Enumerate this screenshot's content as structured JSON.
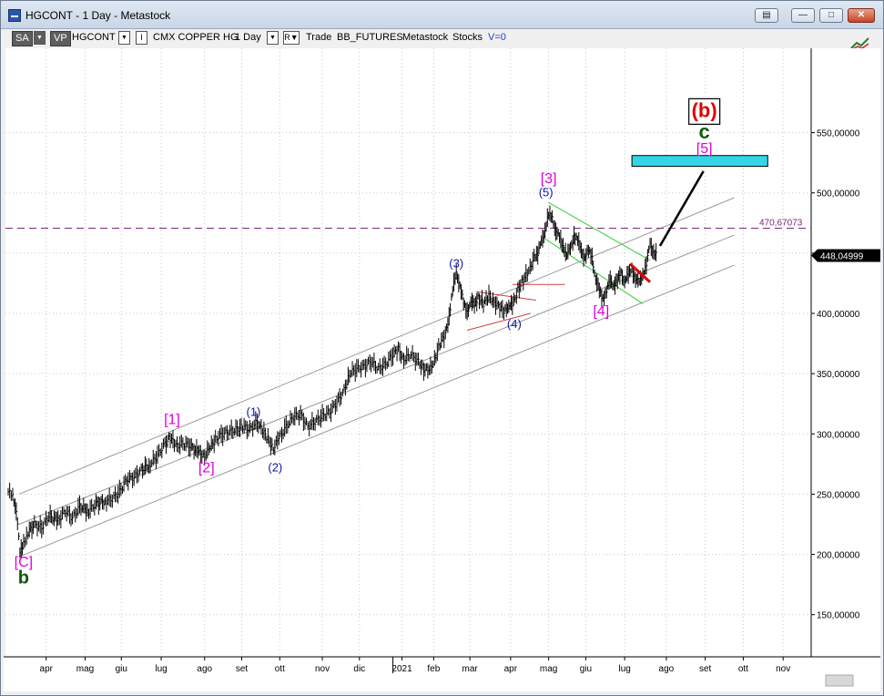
{
  "window": {
    "title": "HGCONT - 1 Day - Metastock",
    "buttons": [
      "restore",
      "minimize",
      "maximize",
      "close"
    ]
  },
  "toolbar": {
    "sa": "SA",
    "vp": "VP",
    "symbol": "HGCONT",
    "indicator": "I",
    "instrument": "CMX COPPER HG",
    "period": "1 Day",
    "r_label": "R",
    "trade": "Trade",
    "source": "BB_FUTURES",
    "app": "Metastock",
    "stocks": "Stocks",
    "v_label": "V=0"
  },
  "colors": {
    "background": "#ffffff",
    "price_bars": "#000000",
    "channel": "#9a9a9a",
    "wave_blue": "#0b18a6",
    "wave_magenta": "#e000e0",
    "wave_green": "#0e5a0e",
    "wave_red": "#e00000",
    "target_box": "#33d6e6",
    "level_line": "#7a2a7a",
    "down_channel": "#2fd02f"
  },
  "chart_data": {
    "type": "line",
    "ylim": [
      115,
      620
    ],
    "y_ticks": [
      150,
      200,
      250,
      300,
      350,
      400,
      450,
      500,
      550
    ],
    "y_tick_labels": [
      "150,00000",
      "200,00000",
      "250,00000",
      "300,00000",
      "350,00000",
      "400,00000",
      "450,00000",
      "500,00000",
      "550,00000"
    ],
    "x_range": [
      0,
      890
    ],
    "x_ticks": [
      {
        "x": 45,
        "label": "apr"
      },
      {
        "x": 88,
        "label": "mag"
      },
      {
        "x": 128,
        "label": "giu"
      },
      {
        "x": 172,
        "label": "lug"
      },
      {
        "x": 220,
        "label": "ago"
      },
      {
        "x": 261,
        "label": "set"
      },
      {
        "x": 303,
        "label": "ott"
      },
      {
        "x": 350,
        "label": "nov"
      },
      {
        "x": 391,
        "label": "dic"
      },
      {
        "x": 438,
        "label": "2021"
      },
      {
        "x": 473,
        "label": "feb"
      },
      {
        "x": 513,
        "label": "mar"
      },
      {
        "x": 558,
        "label": "apr"
      },
      {
        "x": 600,
        "label": "mag"
      },
      {
        "x": 641,
        "label": "giu"
      },
      {
        "x": 684,
        "label": "lug"
      },
      {
        "x": 730,
        "label": "ago"
      },
      {
        "x": 773,
        "label": "set"
      },
      {
        "x": 815,
        "label": "ott"
      },
      {
        "x": 859,
        "label": "nov"
      }
    ],
    "price_path": [
      {
        "x": 3,
        "y": 252
      },
      {
        "x": 8,
        "y": 248
      },
      {
        "x": 12,
        "y": 238
      },
      {
        "x": 16,
        "y": 200
      },
      {
        "x": 20,
        "y": 210
      },
      {
        "x": 25,
        "y": 218
      },
      {
        "x": 32,
        "y": 225
      },
      {
        "x": 40,
        "y": 222
      },
      {
        "x": 48,
        "y": 232
      },
      {
        "x": 58,
        "y": 228
      },
      {
        "x": 66,
        "y": 236
      },
      {
        "x": 74,
        "y": 230
      },
      {
        "x": 82,
        "y": 240
      },
      {
        "x": 92,
        "y": 236
      },
      {
        "x": 100,
        "y": 242
      },
      {
        "x": 110,
        "y": 244
      },
      {
        "x": 118,
        "y": 246
      },
      {
        "x": 126,
        "y": 252
      },
      {
        "x": 134,
        "y": 262
      },
      {
        "x": 142,
        "y": 264
      },
      {
        "x": 150,
        "y": 270
      },
      {
        "x": 160,
        "y": 275
      },
      {
        "x": 168,
        "y": 282
      },
      {
        "x": 176,
        "y": 292
      },
      {
        "x": 182,
        "y": 297
      },
      {
        "x": 188,
        "y": 290
      },
      {
        "x": 196,
        "y": 292
      },
      {
        "x": 204,
        "y": 290
      },
      {
        "x": 214,
        "y": 284
      },
      {
        "x": 220,
        "y": 282
      },
      {
        "x": 226,
        "y": 288
      },
      {
        "x": 232,
        "y": 296
      },
      {
        "x": 240,
        "y": 300
      },
      {
        "x": 248,
        "y": 302
      },
      {
        "x": 256,
        "y": 304
      },
      {
        "x": 262,
        "y": 306
      },
      {
        "x": 270,
        "y": 304
      },
      {
        "x": 278,
        "y": 310
      },
      {
        "x": 284,
        "y": 302
      },
      {
        "x": 290,
        "y": 296
      },
      {
        "x": 296,
        "y": 288
      },
      {
        "x": 302,
        "y": 296
      },
      {
        "x": 310,
        "y": 306
      },
      {
        "x": 318,
        "y": 314
      },
      {
        "x": 326,
        "y": 316
      },
      {
        "x": 334,
        "y": 306
      },
      {
        "x": 342,
        "y": 310
      },
      {
        "x": 350,
        "y": 315
      },
      {
        "x": 358,
        "y": 318
      },
      {
        "x": 366,
        "y": 326
      },
      {
        "x": 374,
        "y": 336
      },
      {
        "x": 380,
        "y": 350
      },
      {
        "x": 388,
        "y": 354
      },
      {
        "x": 396,
        "y": 356
      },
      {
        "x": 404,
        "y": 360
      },
      {
        "x": 412,
        "y": 354
      },
      {
        "x": 420,
        "y": 358
      },
      {
        "x": 428,
        "y": 366
      },
      {
        "x": 434,
        "y": 370
      },
      {
        "x": 440,
        "y": 362
      },
      {
        "x": 448,
        "y": 366
      },
      {
        "x": 456,
        "y": 360
      },
      {
        "x": 462,
        "y": 354
      },
      {
        "x": 468,
        "y": 352
      },
      {
        "x": 474,
        "y": 362
      },
      {
        "x": 480,
        "y": 375
      },
      {
        "x": 486,
        "y": 382
      },
      {
        "x": 490,
        "y": 398
      },
      {
        "x": 494,
        "y": 420
      },
      {
        "x": 498,
        "y": 432
      },
      {
        "x": 502,
        "y": 425
      },
      {
        "x": 506,
        "y": 408
      },
      {
        "x": 510,
        "y": 400
      },
      {
        "x": 514,
        "y": 412
      },
      {
        "x": 518,
        "y": 405
      },
      {
        "x": 522,
        "y": 414
      },
      {
        "x": 528,
        "y": 408
      },
      {
        "x": 534,
        "y": 414
      },
      {
        "x": 540,
        "y": 410
      },
      {
        "x": 546,
        "y": 404
      },
      {
        "x": 552,
        "y": 402
      },
      {
        "x": 556,
        "y": 408
      },
      {
        "x": 560,
        "y": 406
      },
      {
        "x": 566,
        "y": 420
      },
      {
        "x": 572,
        "y": 428
      },
      {
        "x": 578,
        "y": 434
      },
      {
        "x": 584,
        "y": 448
      },
      {
        "x": 588,
        "y": 450
      },
      {
        "x": 592,
        "y": 458
      },
      {
        "x": 596,
        "y": 470
      },
      {
        "x": 600,
        "y": 482
      },
      {
        "x": 604,
        "y": 478
      },
      {
        "x": 608,
        "y": 470
      },
      {
        "x": 612,
        "y": 462
      },
      {
        "x": 616,
        "y": 455
      },
      {
        "x": 620,
        "y": 450
      },
      {
        "x": 624,
        "y": 452
      },
      {
        "x": 628,
        "y": 465
      },
      {
        "x": 632,
        "y": 462
      },
      {
        "x": 636,
        "y": 450
      },
      {
        "x": 640,
        "y": 448
      },
      {
        "x": 644,
        "y": 452
      },
      {
        "x": 648,
        "y": 445
      },
      {
        "x": 652,
        "y": 430
      },
      {
        "x": 656,
        "y": 418
      },
      {
        "x": 660,
        "y": 412
      },
      {
        "x": 664,
        "y": 420
      },
      {
        "x": 668,
        "y": 426
      },
      {
        "x": 672,
        "y": 424
      },
      {
        "x": 676,
        "y": 428
      },
      {
        "x": 680,
        "y": 432
      },
      {
        "x": 684,
        "y": 428
      },
      {
        "x": 688,
        "y": 432
      },
      {
        "x": 692,
        "y": 436
      },
      {
        "x": 696,
        "y": 430
      },
      {
        "x": 700,
        "y": 425
      },
      {
        "x": 704,
        "y": 432
      },
      {
        "x": 708,
        "y": 442
      },
      {
        "x": 712,
        "y": 456
      },
      {
        "x": 716,
        "y": 452
      },
      {
        "x": 720,
        "y": 448
      }
    ],
    "channel_lines": [
      {
        "x1": 15,
        "y1": 250,
        "x2": 805,
        "y2": 496
      },
      {
        "x1": 15,
        "y1": 225,
        "x2": 805,
        "y2": 465
      },
      {
        "x1": 15,
        "y1": 198,
        "x2": 805,
        "y2": 440
      }
    ],
    "down_channel": [
      {
        "x1": 600,
        "y1": 492,
        "x2": 712,
        "y2": 444
      },
      {
        "x1": 596,
        "y1": 462,
        "x2": 704,
        "y2": 408
      }
    ],
    "triangle_lines": [
      {
        "x1": 520,
        "y1": 418,
        "x2": 586,
        "y2": 411,
        "color": "#d04040"
      },
      {
        "x1": 510,
        "y1": 386,
        "x2": 580,
        "y2": 400,
        "color": "#d04040"
      },
      {
        "x1": 560,
        "y1": 424,
        "x2": 618,
        "y2": 424,
        "color": "#d04040"
      }
    ],
    "breakout_line": {
      "x1": 690,
      "y1": 441,
      "x2": 712,
      "y2": 426,
      "color": "#e00000"
    },
    "projection_line": {
      "x1": 723,
      "y1": 456,
      "x2": 771,
      "y2": 518,
      "color": "#000000"
    },
    "target_box": {
      "x1": 692,
      "x2": 842,
      "y_low": 522,
      "y_high": 531
    },
    "level": {
      "value": 470.67073,
      "label": "470,67073"
    },
    "last_price": {
      "value": 448.04999,
      "label": "448,04999"
    },
    "annotations": [
      {
        "text": "[C]",
        "x": 20,
        "y": 190,
        "color": "magenta",
        "size": 16
      },
      {
        "text": "b",
        "x": 20,
        "y": 176,
        "color": "green",
        "size": 20,
        "bold": true
      },
      {
        "text": "[1]",
        "x": 184,
        "y": 308,
        "color": "magenta",
        "size": 16
      },
      {
        "text": "[2]",
        "x": 222,
        "y": 268,
        "color": "magenta",
        "size": 16
      },
      {
        "text": "(1)",
        "x": 274,
        "y": 315,
        "color": "blue",
        "size": 13
      },
      {
        "text": "(2)",
        "x": 298,
        "y": 269,
        "color": "blue",
        "size": 13
      },
      {
        "text": "(3)",
        "x": 498,
        "y": 438,
        "color": "blue",
        "size": 13
      },
      {
        "text": "(4)",
        "x": 562,
        "y": 388,
        "color": "blue",
        "size": 13
      },
      {
        "text": "(5)",
        "x": 597,
        "y": 497,
        "color": "blue",
        "size": 13
      },
      {
        "text": "[3]",
        "x": 600,
        "y": 508,
        "color": "magenta",
        "size": 16
      },
      {
        "text": "[4]",
        "x": 658,
        "y": 398,
        "color": "magenta",
        "size": 16
      },
      {
        "text": "[5]",
        "x": 772,
        "y": 533,
        "color": "magenta",
        "size": 16
      },
      {
        "text": "c",
        "x": 772,
        "y": 545,
        "color": "green",
        "size": 22,
        "bold": true
      },
      {
        "text": "(b)",
        "x": 772,
        "y": 563,
        "color": "red",
        "size": 22,
        "bold": true,
        "boxed": true
      }
    ]
  }
}
